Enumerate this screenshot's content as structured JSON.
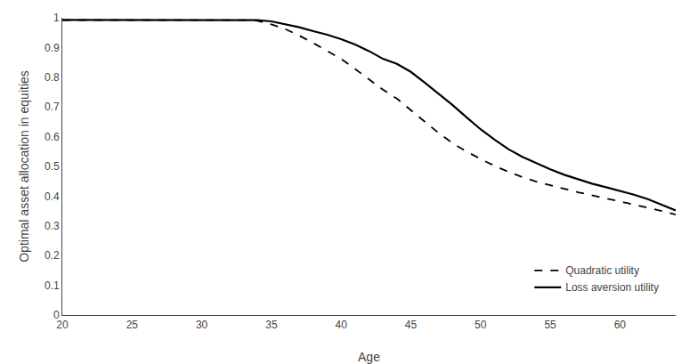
{
  "chart_data": {
    "type": "line",
    "title": "",
    "xlabel": "Age",
    "ylabel": "Optimal asset allocation in equities",
    "x": [
      20,
      21,
      22,
      23,
      24,
      25,
      26,
      27,
      28,
      29,
      30,
      31,
      32,
      33,
      34,
      35,
      36,
      37,
      38,
      39,
      40,
      41,
      42,
      43,
      44,
      45,
      46,
      47,
      48,
      49,
      50,
      51,
      52,
      53,
      54,
      55,
      56,
      57,
      58,
      59,
      60,
      61,
      62,
      63,
      64
    ],
    "series": [
      {
        "name": "Quadratic utility",
        "color": "#000000",
        "line_style": "dashed",
        "values": [
          0.992,
          0.992,
          0.993,
          0.993,
          0.993,
          0.993,
          0.993,
          0.993,
          0.993,
          0.993,
          0.993,
          0.993,
          0.993,
          0.992,
          0.99,
          0.978,
          0.962,
          0.94,
          0.915,
          0.888,
          0.862,
          0.828,
          0.792,
          0.758,
          0.728,
          0.69,
          0.65,
          0.612,
          0.578,
          0.55,
          0.525,
          0.502,
          0.482,
          0.464,
          0.449,
          0.438,
          0.425,
          0.413,
          0.402,
          0.392,
          0.382,
          0.372,
          0.362,
          0.35,
          0.338
        ]
      },
      {
        "name": "Loss aversion utility",
        "color": "#000000",
        "line_style": "solid",
        "values": [
          0.993,
          0.993,
          0.993,
          0.994,
          0.994,
          0.994,
          0.994,
          0.994,
          0.994,
          0.994,
          0.994,
          0.994,
          0.994,
          0.993,
          0.992,
          0.988,
          0.978,
          0.968,
          0.955,
          0.943,
          0.928,
          0.91,
          0.888,
          0.862,
          0.845,
          0.818,
          0.782,
          0.745,
          0.706,
          0.665,
          0.625,
          0.59,
          0.558,
          0.532,
          0.51,
          0.49,
          0.472,
          0.456,
          0.442,
          0.43,
          0.418,
          0.405,
          0.39,
          0.372,
          0.352
        ]
      }
    ],
    "xlim": [
      20,
      64
    ],
    "ylim": [
      0,
      1
    ],
    "xticks": [
      20,
      25,
      30,
      35,
      40,
      45,
      50,
      55,
      60
    ],
    "yticks": [
      0,
      0.1,
      0.2,
      0.3,
      0.4,
      0.5,
      0.6,
      0.7,
      0.8,
      0.9,
      1
    ],
    "grid": false,
    "legend": "lower right"
  }
}
